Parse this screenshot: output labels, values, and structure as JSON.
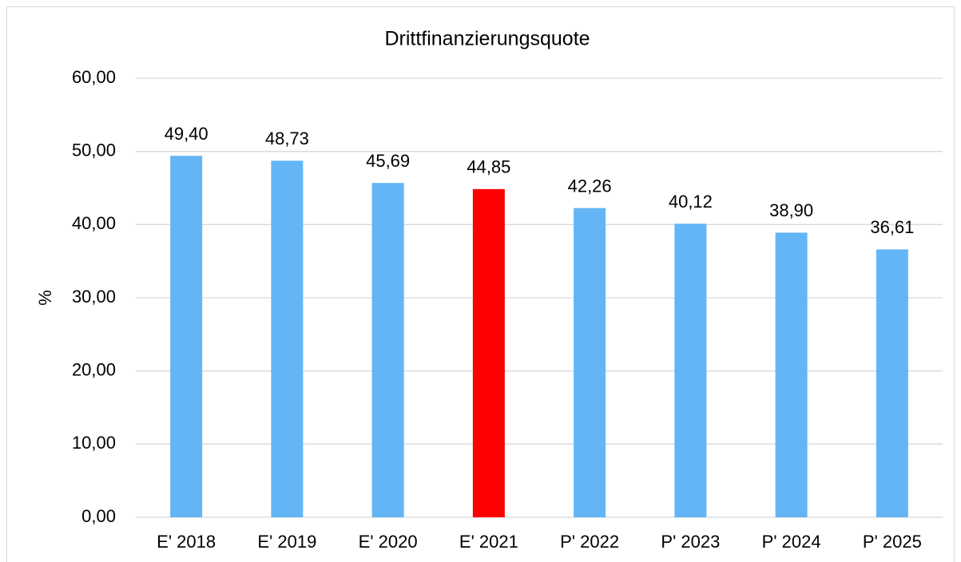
{
  "chart_data": {
    "type": "bar",
    "title": "Drittfinanzierungsquote",
    "ylabel": "%",
    "categories": [
      "E' 2018",
      "E' 2019",
      "E' 2020",
      "E' 2021",
      "P' 2022",
      "P' 2023",
      "P' 2024",
      "P' 2025"
    ],
    "values": [
      49.4,
      48.73,
      45.69,
      44.85,
      42.26,
      40.12,
      38.9,
      36.61
    ],
    "value_labels": [
      "49,40",
      "48,73",
      "45,69",
      "44,85",
      "42,26",
      "40,12",
      "38,90",
      "36,61"
    ],
    "colors": [
      "#63b5f5",
      "#63b5f5",
      "#63b5f5",
      "#ff0000",
      "#63b5f5",
      "#63b5f5",
      "#63b5f5",
      "#63b5f5"
    ],
    "ylim": [
      0,
      60
    ],
    "yticks": [
      {
        "value": 0,
        "label": "0,00"
      },
      {
        "value": 10,
        "label": "10,00"
      },
      {
        "value": 20,
        "label": "20,00"
      },
      {
        "value": 30,
        "label": "30,00"
      },
      {
        "value": 40,
        "label": "40,00"
      },
      {
        "value": 50,
        "label": "50,00"
      },
      {
        "value": 60,
        "label": "60,00"
      }
    ],
    "grid": true
  }
}
